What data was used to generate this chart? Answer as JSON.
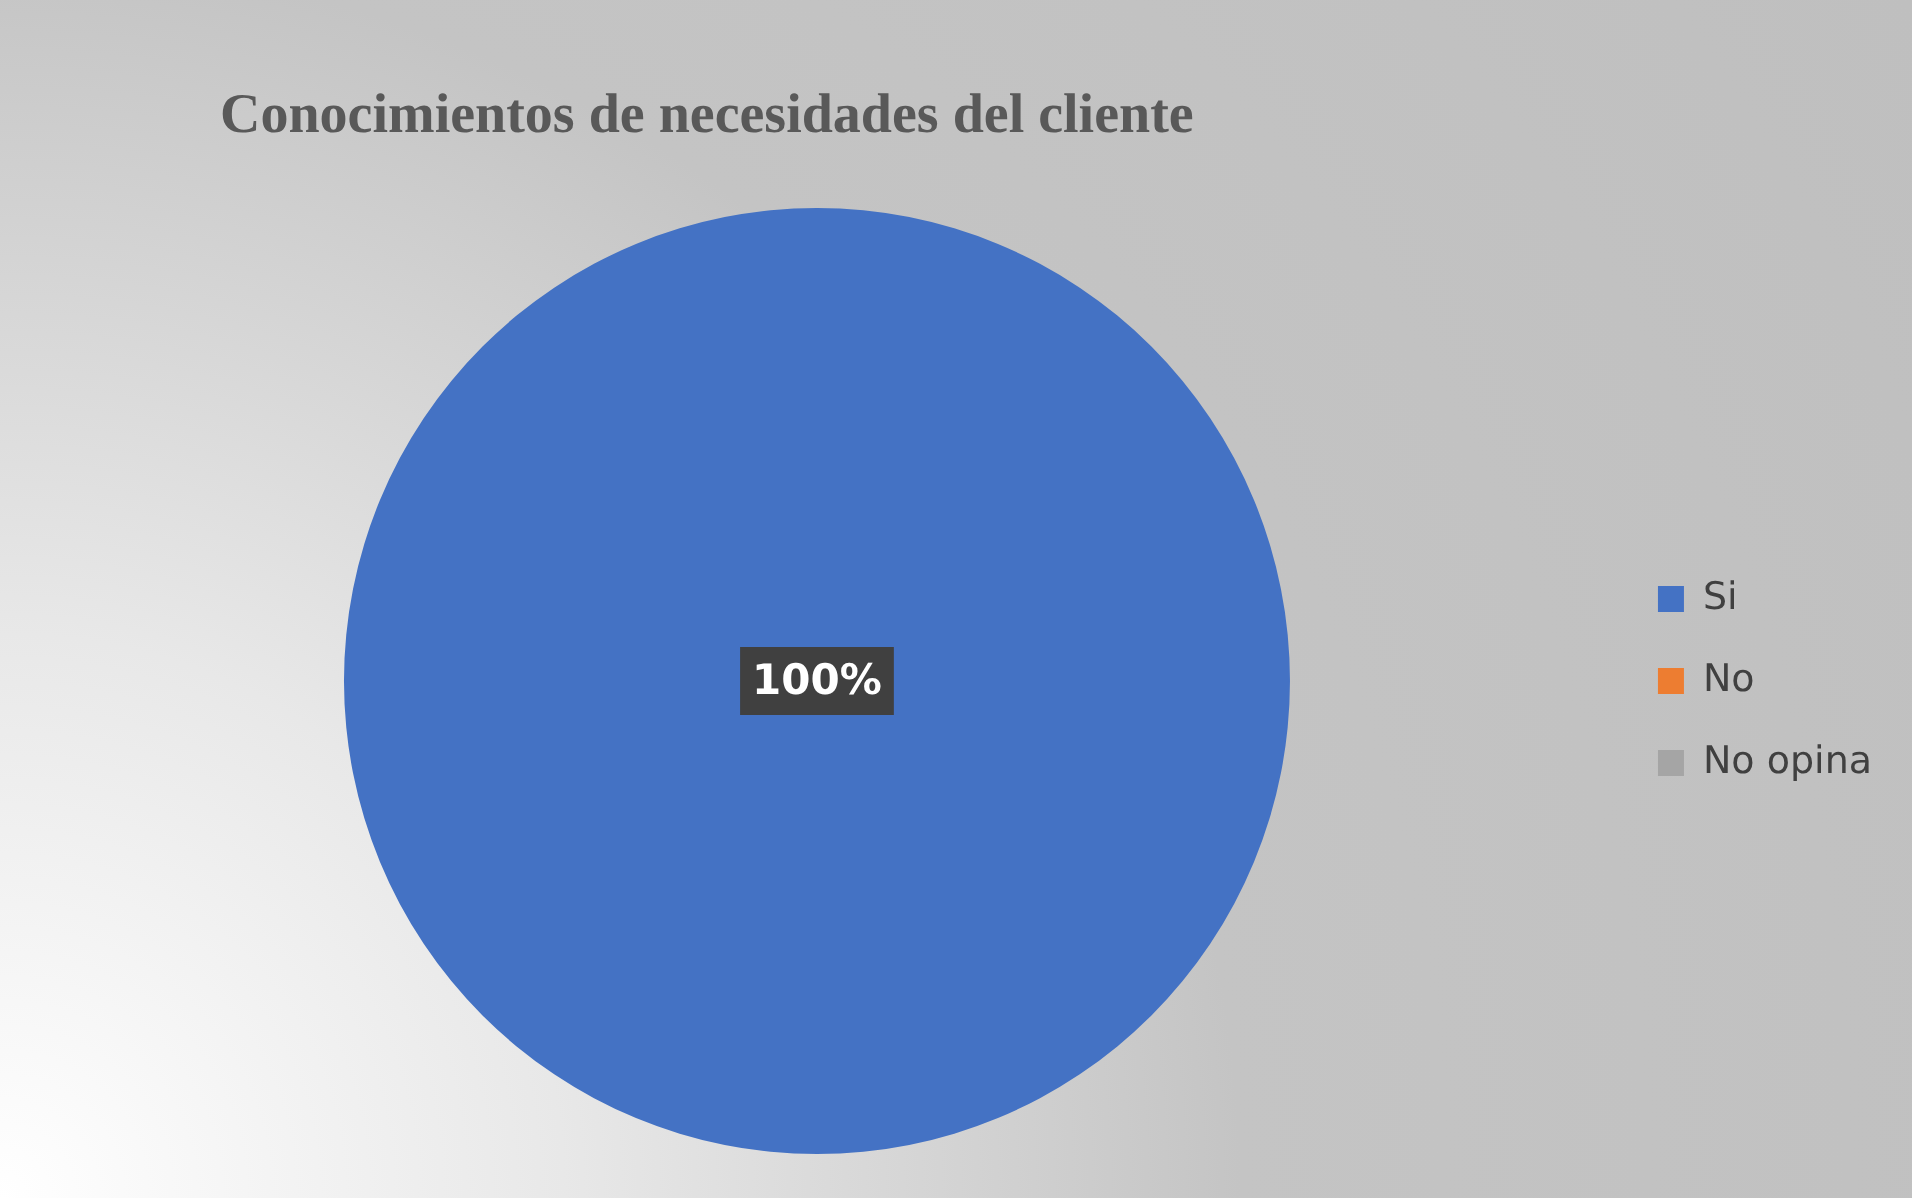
{
  "chart_data": {
    "type": "pie",
    "title": "Conocimientos de necesidades del cliente",
    "categories": [
      "Si",
      "No",
      "No opina"
    ],
    "values": [
      100,
      0,
      0
    ],
    "colors": [
      "#4472c4",
      "#ed7d31",
      "#a5a5a5"
    ],
    "value_labels": [
      "100%",
      null,
      null
    ],
    "legend": "right"
  }
}
